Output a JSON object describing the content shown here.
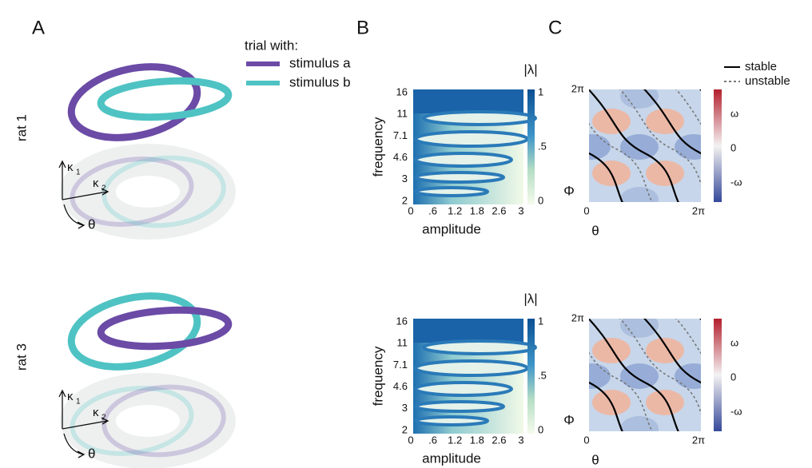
{
  "panels": {
    "a": "A",
    "b": "B",
    "c": "C"
  },
  "legend": {
    "title": "trial with:",
    "items": [
      {
        "label": "stimulus a",
        "color": "#6b4ba6"
      },
      {
        "label": "stimulus b",
        "color": "#4fc3c3"
      }
    ]
  },
  "rows": [
    "rat 1",
    "rat 3"
  ],
  "state_axes": {
    "k1": "κ",
    "k1_sub": "1",
    "k2": "κ",
    "k2_sub": "2",
    "theta": "θ"
  },
  "heatmap": {
    "ylabel": "frequency",
    "xlabel": "amplitude",
    "yticks": [
      "16",
      "11",
      "7.1",
      "4.6",
      "3",
      "2"
    ],
    "xticks": [
      "0",
      ".6",
      "1.2",
      "1.8",
      "2.6",
      "3"
    ],
    "colorbar_title": "|λ|",
    "colorbar_ticks": [
      "1",
      ".5",
      "0"
    ]
  },
  "phase": {
    "ylabel": "Φ",
    "xlabel": "θ",
    "ytick": "2π",
    "xticks": [
      "0",
      "2π"
    ],
    "colorbar_ticks": [
      "ω",
      "0",
      "-ω"
    ],
    "legend": [
      {
        "label": "stable",
        "dash": false
      },
      {
        "label": "unstable",
        "dash": true
      }
    ]
  }
}
